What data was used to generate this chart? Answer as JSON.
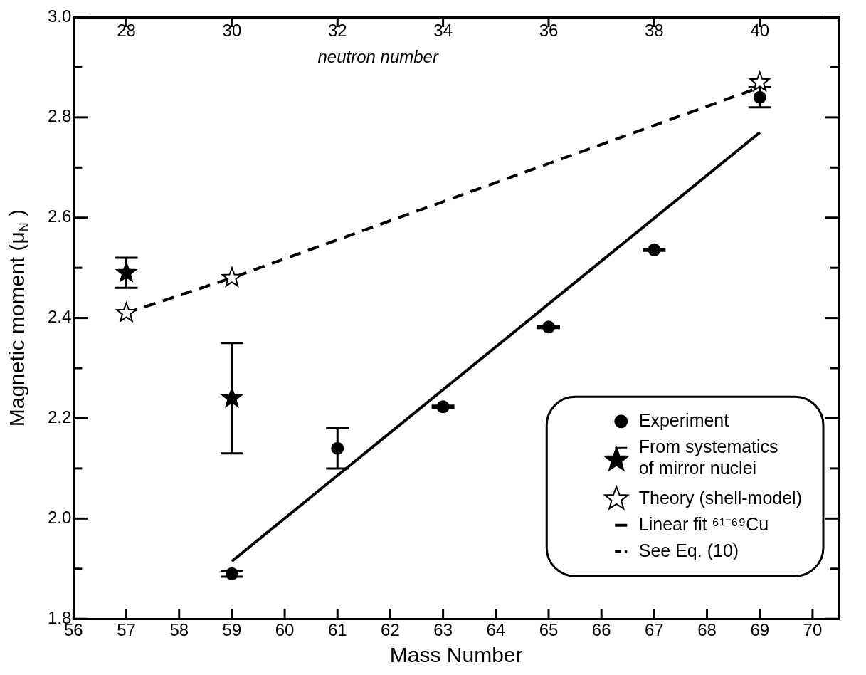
{
  "chart_data": {
    "type": "scatter",
    "xlabel": "Mass Number",
    "ylabel": "Magnetic moment (μ$_{N}$ )",
    "x2label": "neutron number",
    "xlim": [
      56,
      70.5
    ],
    "xticks": [
      56,
      57,
      58,
      59,
      60,
      61,
      62,
      63,
      64,
      65,
      66,
      67,
      68,
      69,
      70
    ],
    "ylim": [
      1.8,
      3.0
    ],
    "yticks": [
      1.8,
      {
        "value": 1.9,
        "label": null
      },
      {
        "value": 2.0,
        "label": "2.0"
      },
      {
        "value": 2.1,
        "label": null
      },
      2.2,
      {
        "value": 2.3,
        "label": null
      },
      2.4,
      {
        "value": 2.5,
        "label": null
      },
      2.6,
      {
        "value": 2.7,
        "label": null
      },
      2.8,
      {
        "value": 2.9,
        "label": null
      },
      {
        "value": 3.0,
        "label": "3.0"
      }
    ],
    "x2lim": [
      27,
      41.5
    ],
    "x2ticks": [
      28,
      30,
      32,
      34,
      36,
      38,
      40
    ],
    "legend": "bottom right",
    "series": [
      {
        "name": "Experiment",
        "marker": "circle",
        "color": "#000000",
        "x": [
          59,
          61,
          63,
          65,
          67,
          69
        ],
        "values": [
          1.89,
          2.14,
          2.223,
          2.382,
          2.536,
          2.84
        ],
        "errors": [
          0.006,
          0.04,
          0.002,
          0.002,
          0.002,
          0.02
        ]
      },
      {
        "name": "From systematics of mirror nuclei",
        "marker": "star",
        "color": "#000000",
        "x": [
          57,
          59
        ],
        "values": [
          2.49,
          2.24
        ],
        "errors": [
          0.03,
          0.11
        ]
      },
      {
        "name": "Theory (shell-model)",
        "marker": "star",
        "color": "#ffffff",
        "x": [
          57,
          59,
          69
        ],
        "values": [
          2.41,
          2.48,
          2.87
        ]
      },
      {
        "name": "Linear fit ⁶¹⁻⁶⁹Cu",
        "type": "line",
        "marker": "none",
        "line_style": "solid",
        "color": "#000000",
        "x": [
          59,
          69
        ],
        "values": [
          1.915,
          2.77
        ]
      },
      {
        "name": "See Eq. (10)",
        "type": "line",
        "marker": "none",
        "line_style": "dashed",
        "color": "#000000",
        "x": [
          57,
          59,
          69
        ],
        "values": [
          2.41,
          2.48,
          2.86
        ]
      }
    ]
  }
}
